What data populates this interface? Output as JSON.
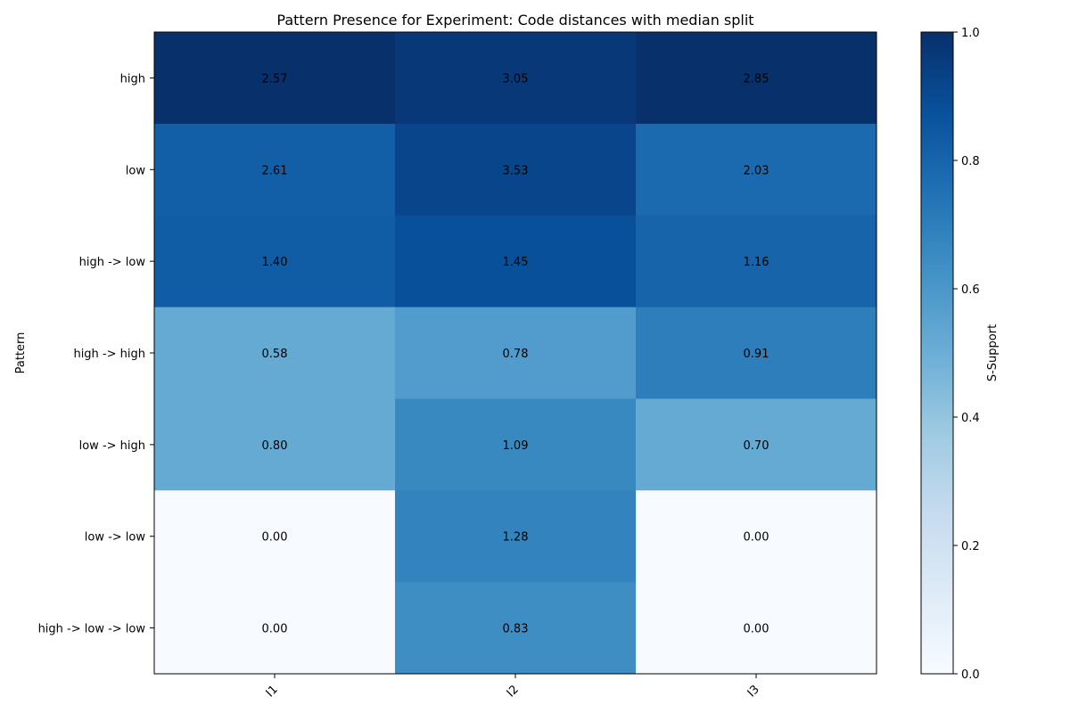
{
  "chart_data": {
    "type": "heatmap",
    "title": "Pattern Presence for Experiment: Code distances with median split",
    "xlabel": "",
    "ylabel": "Pattern",
    "x_categories": [
      "I1",
      "I2",
      "I3"
    ],
    "y_categories": [
      "high",
      "low",
      "high -> low",
      "high -> high",
      "low -> high",
      "low -> low",
      "high -> low -> low"
    ],
    "cell_labels": [
      [
        "2.57",
        "3.05",
        "2.85"
      ],
      [
        "2.61",
        "3.53",
        "2.03"
      ],
      [
        "1.40",
        "1.45",
        "1.16"
      ],
      [
        "0.58",
        "0.78",
        "0.91"
      ],
      [
        "0.80",
        "1.09",
        "0.70"
      ],
      [
        "0.00",
        "1.28",
        "0.00"
      ],
      [
        "0.00",
        "0.83",
        "0.00"
      ]
    ],
    "color_values": [
      [
        1.0,
        0.97,
        1.0
      ],
      [
        0.82,
        0.92,
        0.78
      ],
      [
        0.83,
        0.88,
        0.8
      ],
      [
        0.52,
        0.58,
        0.7
      ],
      [
        0.52,
        0.66,
        0.52
      ],
      [
        0.0,
        0.68,
        0.0
      ],
      [
        0.0,
        0.64,
        0.0
      ]
    ],
    "colormap": "Blues",
    "colorbar": {
      "label": "S-Support",
      "range": [
        0,
        1
      ],
      "ticks": [
        "0.0",
        "0.2",
        "0.4",
        "0.6",
        "0.8",
        "1.0"
      ]
    },
    "grid": false
  }
}
